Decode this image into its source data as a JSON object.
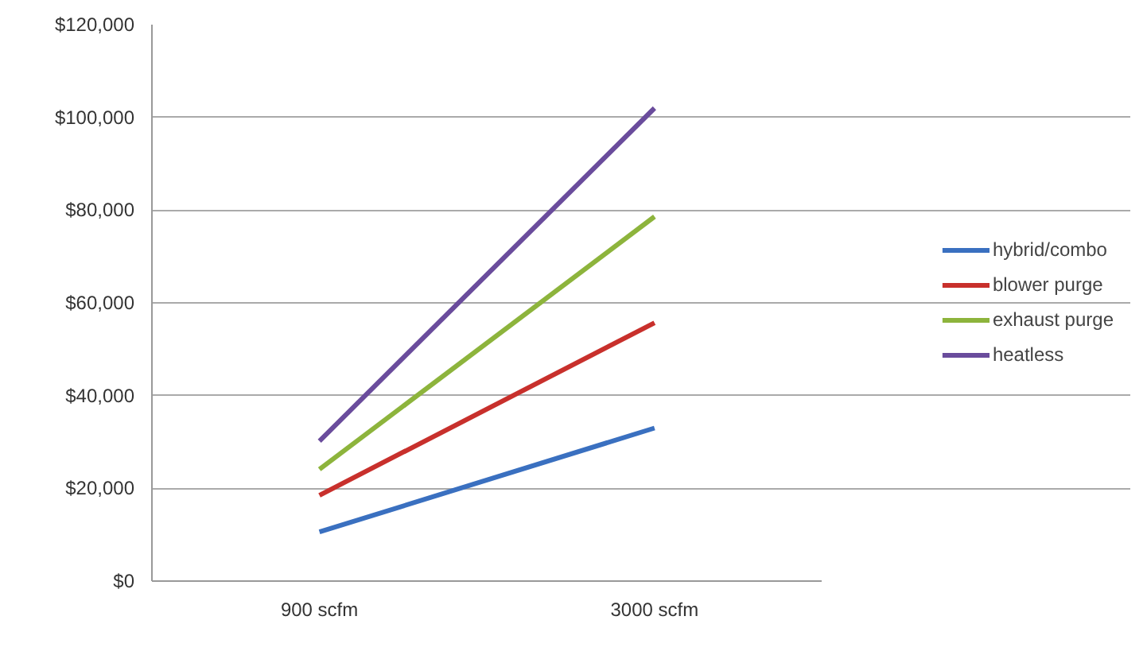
{
  "chart_data": {
    "type": "line",
    "categories": [
      "900 scfm",
      "3000 scfm"
    ],
    "series": [
      {
        "name": "hybrid/combo",
        "color": "#3a70c0",
        "values": [
          10600,
          33000
        ]
      },
      {
        "name": "blower purge",
        "color": "#c8302c",
        "values": [
          18500,
          55700
        ]
      },
      {
        "name": "exhaust purge",
        "color": "#8db43c",
        "values": [
          24100,
          78600
        ]
      },
      {
        "name": "heatless",
        "color": "#6a4c9c",
        "values": [
          30200,
          102000
        ]
      }
    ],
    "ylim": [
      0,
      120000
    ],
    "yticks": [
      {
        "value": 0,
        "label": "$0"
      },
      {
        "value": 20000,
        "label": "$20,000"
      },
      {
        "value": 40000,
        "label": "$40,000"
      },
      {
        "value": 60000,
        "label": "$60,000"
      },
      {
        "value": 80000,
        "label": "$80,000"
      },
      {
        "value": 100000,
        "label": "$100,000"
      },
      {
        "value": 120000,
        "label": "$120,000"
      }
    ],
    "grid": "y",
    "legend": "right",
    "marker": "none",
    "line_style": "solid"
  }
}
